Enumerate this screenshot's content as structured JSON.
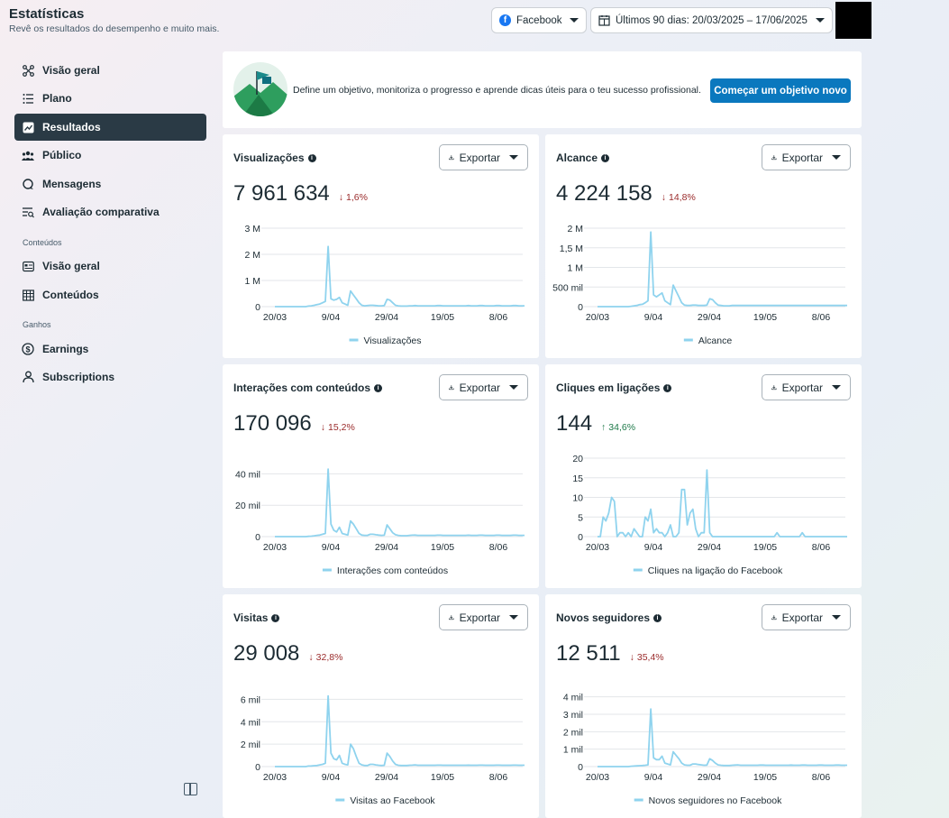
{
  "header": {
    "title": "Estatísticas",
    "subtitle": "Revê os resultados do desempenho e muito mais.",
    "platform_select": "Facebook",
    "date_select": "Últimos 90 dias: 20/03/2025 – 17/06/2025"
  },
  "sidebar": {
    "items": [
      {
        "label": "Visão geral",
        "icon": "nodes-icon"
      },
      {
        "label": "Plano",
        "icon": "list-icon"
      },
      {
        "label": "Resultados",
        "icon": "trend-icon",
        "active": true
      },
      {
        "label": "Público",
        "icon": "people-icon"
      },
      {
        "label": "Mensagens",
        "icon": "chat-icon"
      },
      {
        "label": "Avaliação comparativa",
        "icon": "compare-icon"
      }
    ],
    "section_content": "Conteúdos",
    "content_items": [
      {
        "label": "Visão geral",
        "icon": "overview-icon"
      },
      {
        "label": "Conteúdos",
        "icon": "grid-icon"
      }
    ],
    "section_earnings": "Ganhos",
    "earning_items": [
      {
        "label": "Earnings",
        "icon": "dollar-icon"
      },
      {
        "label": "Subscriptions",
        "icon": "person-icon"
      }
    ]
  },
  "banner": {
    "text": "Define um objetivo, monitoriza o progresso e aprende dicas úteis para o teu sucesso profissional.",
    "button": "Começar um objetivo novo"
  },
  "export_label": "Exportar",
  "accent_color": "#0a78be",
  "line_color": "#8fd3ee",
  "cards": [
    {
      "title": "Visualizações",
      "value": "7 961 634",
      "change": "1,6%",
      "direction": "down",
      "legend": "Visualizações"
    },
    {
      "title": "Alcance",
      "value": "4 224 158",
      "change": "14,8%",
      "direction": "down",
      "legend": "Alcance"
    },
    {
      "title": "Interações com conteúdos",
      "value": "170 096",
      "change": "15,2%",
      "direction": "down",
      "legend": "Interações com conteúdos"
    },
    {
      "title": "Cliques em ligações",
      "value": "144",
      "change": "34,6%",
      "direction": "up",
      "legend": "Cliques na ligação do Facebook"
    },
    {
      "title": "Visitas",
      "value": "29 008",
      "change": "32,8%",
      "direction": "down",
      "legend": "Visitas ao Facebook"
    },
    {
      "title": "Novos seguidores",
      "value": "12 511",
      "change": "35,4%",
      "direction": "down",
      "legend": "Novos seguidores no Facebook"
    }
  ],
  "chart_data": [
    {
      "type": "line",
      "title": "Visualizações",
      "x_ticks": [
        "20/03",
        "9/04",
        "29/04",
        "19/05",
        "8/06"
      ],
      "y_ticks": [
        "0",
        "1 M",
        "2 M",
        "3 M"
      ],
      "ylim": [
        0,
        3000000
      ],
      "series": [
        {
          "name": "Visualizações",
          "values": [
            0,
            0,
            0,
            0,
            0,
            0,
            0,
            0,
            0,
            0,
            0,
            0,
            20000,
            30000,
            50000,
            80000,
            100000,
            150000,
            200000,
            2300000,
            300000,
            250000,
            280000,
            350000,
            150000,
            100000,
            50000,
            600000,
            450000,
            300000,
            150000,
            50000,
            30000,
            40000,
            50000,
            50000,
            40000,
            30000,
            30000,
            40000,
            280000,
            250000,
            150000,
            50000,
            30000,
            20000,
            20000,
            20000,
            30000,
            30000,
            40000,
            30000,
            30000,
            30000,
            30000,
            30000,
            30000,
            30000,
            40000,
            40000,
            30000,
            30000,
            30000,
            30000,
            30000,
            30000,
            30000,
            30000,
            30000,
            40000,
            30000,
            30000,
            30000,
            40000,
            40000,
            30000,
            30000,
            30000,
            30000,
            40000,
            40000,
            30000,
            30000,
            30000,
            30000,
            40000,
            40000,
            30000,
            30000,
            30000
          ]
        }
      ],
      "grid": true,
      "legend": "bottom"
    },
    {
      "type": "line",
      "title": "Alcance",
      "x_ticks": [
        "20/03",
        "9/04",
        "29/04",
        "19/05",
        "8/06"
      ],
      "y_ticks": [
        "0",
        "500 mil",
        "1 M",
        "1,5 M",
        "2 M"
      ],
      "ylim": [
        0,
        2000000
      ],
      "series": [
        {
          "name": "Alcance",
          "values": [
            0,
            0,
            0,
            0,
            0,
            0,
            0,
            0,
            0,
            0,
            0,
            0,
            10000,
            20000,
            30000,
            50000,
            60000,
            100000,
            150000,
            1900000,
            300000,
            250000,
            300000,
            350000,
            150000,
            100000,
            50000,
            550000,
            400000,
            250000,
            100000,
            40000,
            30000,
            30000,
            40000,
            40000,
            30000,
            30000,
            30000,
            40000,
            200000,
            180000,
            100000,
            40000,
            30000,
            20000,
            20000,
            20000,
            30000,
            30000,
            30000,
            30000,
            30000,
            30000,
            30000,
            30000,
            30000,
            30000,
            30000,
            30000,
            30000,
            30000,
            30000,
            30000,
            30000,
            30000,
            30000,
            30000,
            30000,
            30000,
            30000,
            30000,
            30000,
            30000,
            30000,
            30000,
            30000,
            30000,
            30000,
            30000,
            30000,
            30000,
            30000,
            30000,
            30000,
            30000,
            30000,
            30000,
            30000,
            30000
          ]
        }
      ],
      "grid": true,
      "legend": "bottom"
    },
    {
      "type": "line",
      "title": "Interações com conteúdos",
      "x_ticks": [
        "20/03",
        "9/04",
        "29/04",
        "19/05",
        "8/06"
      ],
      "y_ticks": [
        "0",
        "20 mil",
        "40 mil"
      ],
      "ylim": [
        0,
        50000
      ],
      "series": [
        {
          "name": "Interações com conteúdos",
          "values": [
            0,
            0,
            0,
            0,
            0,
            0,
            0,
            0,
            0,
            0,
            0,
            0,
            200,
            300,
            500,
            800,
            1000,
            1500,
            2000,
            43000,
            8000,
            4000,
            3000,
            6000,
            2000,
            1500,
            1000,
            10000,
            8000,
            5000,
            2000,
            1000,
            800,
            800,
            1500,
            1500,
            1200,
            1000,
            800,
            900,
            7500,
            5000,
            2500,
            1200,
            800,
            600,
            600,
            600,
            800,
            900,
            1000,
            800,
            800,
            800,
            800,
            800,
            800,
            800,
            900,
            900,
            800,
            800,
            800,
            800,
            800,
            800,
            800,
            800,
            800,
            900,
            800,
            800,
            800,
            900,
            900,
            800,
            800,
            800,
            800,
            900,
            900,
            800,
            800,
            800,
            800,
            900,
            900,
            800,
            800,
            800
          ]
        }
      ],
      "grid": true,
      "legend": "bottom"
    },
    {
      "type": "line",
      "title": "Cliques em ligações",
      "x_ticks": [
        "20/03",
        "9/04",
        "29/04",
        "19/05",
        "8/06"
      ],
      "y_ticks": [
        "0",
        "5",
        "10",
        "15",
        "20"
      ],
      "ylim": [
        0,
        20
      ],
      "series": [
        {
          "name": "Cliques na ligação do Facebook",
          "values": [
            0,
            0,
            5,
            4,
            6,
            10,
            9,
            0,
            1,
            1,
            0,
            1,
            0,
            2,
            1,
            0,
            0,
            5,
            4,
            7,
            1,
            2,
            1,
            1,
            0,
            1,
            3,
            0,
            0,
            1,
            12,
            12,
            3,
            6,
            7,
            2,
            0,
            1,
            1,
            17,
            1,
            0,
            0,
            0,
            0,
            0,
            0,
            0,
            0,
            0,
            0,
            0,
            0,
            0,
            0,
            0,
            0,
            0,
            0,
            0,
            0,
            0,
            0,
            0,
            1,
            0,
            0,
            0,
            0,
            0,
            0,
            0,
            0,
            1,
            0,
            0,
            0,
            0,
            0,
            0,
            0,
            0,
            0,
            0,
            0,
            0,
            0,
            0,
            0,
            0
          ]
        }
      ],
      "grid": true,
      "legend": "bottom"
    },
    {
      "type": "line",
      "title": "Visitas",
      "x_ticks": [
        "20/03",
        "9/04",
        "29/04",
        "19/05",
        "8/06"
      ],
      "y_ticks": [
        "0",
        "2 mil",
        "4 mil",
        "6 mil"
      ],
      "ylim": [
        0,
        7000
      ],
      "series": [
        {
          "name": "Visitas ao Facebook",
          "values": [
            0,
            0,
            0,
            0,
            0,
            0,
            0,
            0,
            0,
            0,
            0,
            0,
            50,
            60,
            80,
            100,
            150,
            200,
            300,
            6300,
            1200,
            700,
            600,
            1000,
            300,
            200,
            150,
            2000,
            1600,
            900,
            300,
            150,
            100,
            100,
            200,
            200,
            150,
            120,
            100,
            120,
            1200,
            900,
            500,
            200,
            120,
            100,
            100,
            100,
            120,
            130,
            150,
            120,
            120,
            120,
            120,
            120,
            120,
            120,
            130,
            130,
            120,
            120,
            120,
            120,
            120,
            120,
            120,
            120,
            120,
            130,
            120,
            120,
            120,
            130,
            130,
            120,
            120,
            120,
            120,
            130,
            130,
            120,
            120,
            120,
            120,
            130,
            130,
            120,
            120,
            120
          ]
        }
      ],
      "grid": true,
      "legend": "bottom"
    },
    {
      "type": "line",
      "title": "Novos seguidores",
      "x_ticks": [
        "20/03",
        "9/04",
        "29/04",
        "19/05",
        "8/06"
      ],
      "y_ticks": [
        "0",
        "1 mil",
        "2 mil",
        "3 mil",
        "4 mil"
      ],
      "ylim": [
        0,
        4500
      ],
      "series": [
        {
          "name": "Novos seguidores no Facebook",
          "values": [
            0,
            0,
            0,
            0,
            0,
            0,
            0,
            0,
            0,
            0,
            0,
            0,
            20,
            30,
            40,
            50,
            60,
            80,
            100,
            3300,
            500,
            400,
            400,
            600,
            200,
            150,
            100,
            850,
            650,
            450,
            200,
            100,
            80,
            80,
            150,
            150,
            120,
            100,
            80,
            90,
            450,
            350,
            200,
            100,
            80,
            60,
            60,
            60,
            80,
            90,
            100,
            80,
            80,
            80,
            80,
            80,
            80,
            80,
            90,
            90,
            80,
            80,
            80,
            80,
            80,
            80,
            80,
            80,
            80,
            90,
            80,
            80,
            80,
            90,
            90,
            80,
            80,
            80,
            80,
            90,
            90,
            80,
            80,
            80,
            80,
            90,
            90,
            80,
            80,
            80
          ]
        }
      ],
      "grid": true,
      "legend": "bottom"
    }
  ]
}
